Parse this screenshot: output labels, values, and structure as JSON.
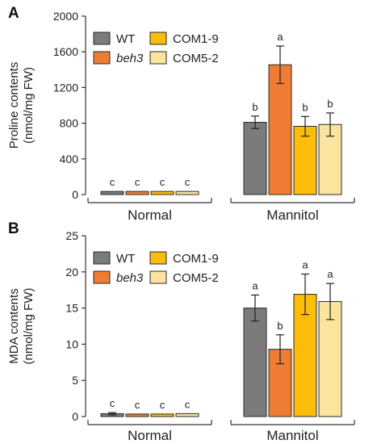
{
  "colors": {
    "WT": "#7b7b7b",
    "beh3": "#ee7d33",
    "COM1-9": "#fbbc0a",
    "COM5-2": "#fce49f"
  },
  "chart_data": [
    {
      "panel": "A",
      "type": "bar",
      "ylabel": [
        "Proline contents",
        "(nmol/mg FW)"
      ],
      "ylim": [
        0,
        2000
      ],
      "yticks": [
        0,
        400,
        800,
        1200,
        1600,
        2000
      ],
      "groups": [
        "Normal",
        "Mannitol"
      ],
      "legend": {
        "placement": "top-left",
        "entries": [
          {
            "name": "WT",
            "italic": false
          },
          {
            "name": "beh3",
            "italic": true
          },
          {
            "name": "COM1-9",
            "italic": false
          },
          {
            "name": "COM5-2",
            "italic": false
          }
        ]
      },
      "series": [
        {
          "name": "WT",
          "values": [
            35,
            810
          ],
          "errors": [
            0,
            70
          ],
          "letters": [
            "c",
            "b"
          ]
        },
        {
          "name": "beh3",
          "values": [
            35,
            1455
          ],
          "errors": [
            0,
            210
          ],
          "letters": [
            "c",
            "a"
          ]
        },
        {
          "name": "COM1-9",
          "values": [
            35,
            765
          ],
          "errors": [
            0,
            110
          ],
          "letters": [
            "c",
            "b"
          ]
        },
        {
          "name": "COM5-2",
          "values": [
            35,
            785
          ],
          "errors": [
            0,
            130
          ],
          "letters": [
            "c",
            "b"
          ]
        }
      ]
    },
    {
      "panel": "B",
      "type": "bar",
      "ylabel": [
        "MDA contents",
        "(nmol/mg FW)"
      ],
      "ylim": [
        0,
        25
      ],
      "yticks": [
        0,
        5,
        10,
        15,
        20,
        25
      ],
      "groups": [
        "Normal",
        "Mannitol"
      ],
      "legend": {
        "placement": "top-left",
        "entries": [
          {
            "name": "WT",
            "italic": false
          },
          {
            "name": "beh3",
            "italic": true
          },
          {
            "name": "COM1-9",
            "italic": false
          },
          {
            "name": "COM5-2",
            "italic": false
          }
        ]
      },
      "series": [
        {
          "name": "WT",
          "values": [
            0.4,
            15.0
          ],
          "errors": [
            0.15,
            1.8
          ],
          "letters": [
            "c",
            "a"
          ]
        },
        {
          "name": "beh3",
          "values": [
            0.35,
            9.3
          ],
          "errors": [
            0,
            2.0
          ],
          "letters": [
            "c",
            "b"
          ]
        },
        {
          "name": "COM1-9",
          "values": [
            0.35,
            16.9
          ],
          "errors": [
            0,
            2.8
          ],
          "letters": [
            "c",
            "a"
          ]
        },
        {
          "name": "COM5-2",
          "values": [
            0.4,
            15.9
          ],
          "errors": [
            0,
            2.5
          ],
          "letters": [
            "c",
            "a"
          ]
        }
      ]
    }
  ]
}
